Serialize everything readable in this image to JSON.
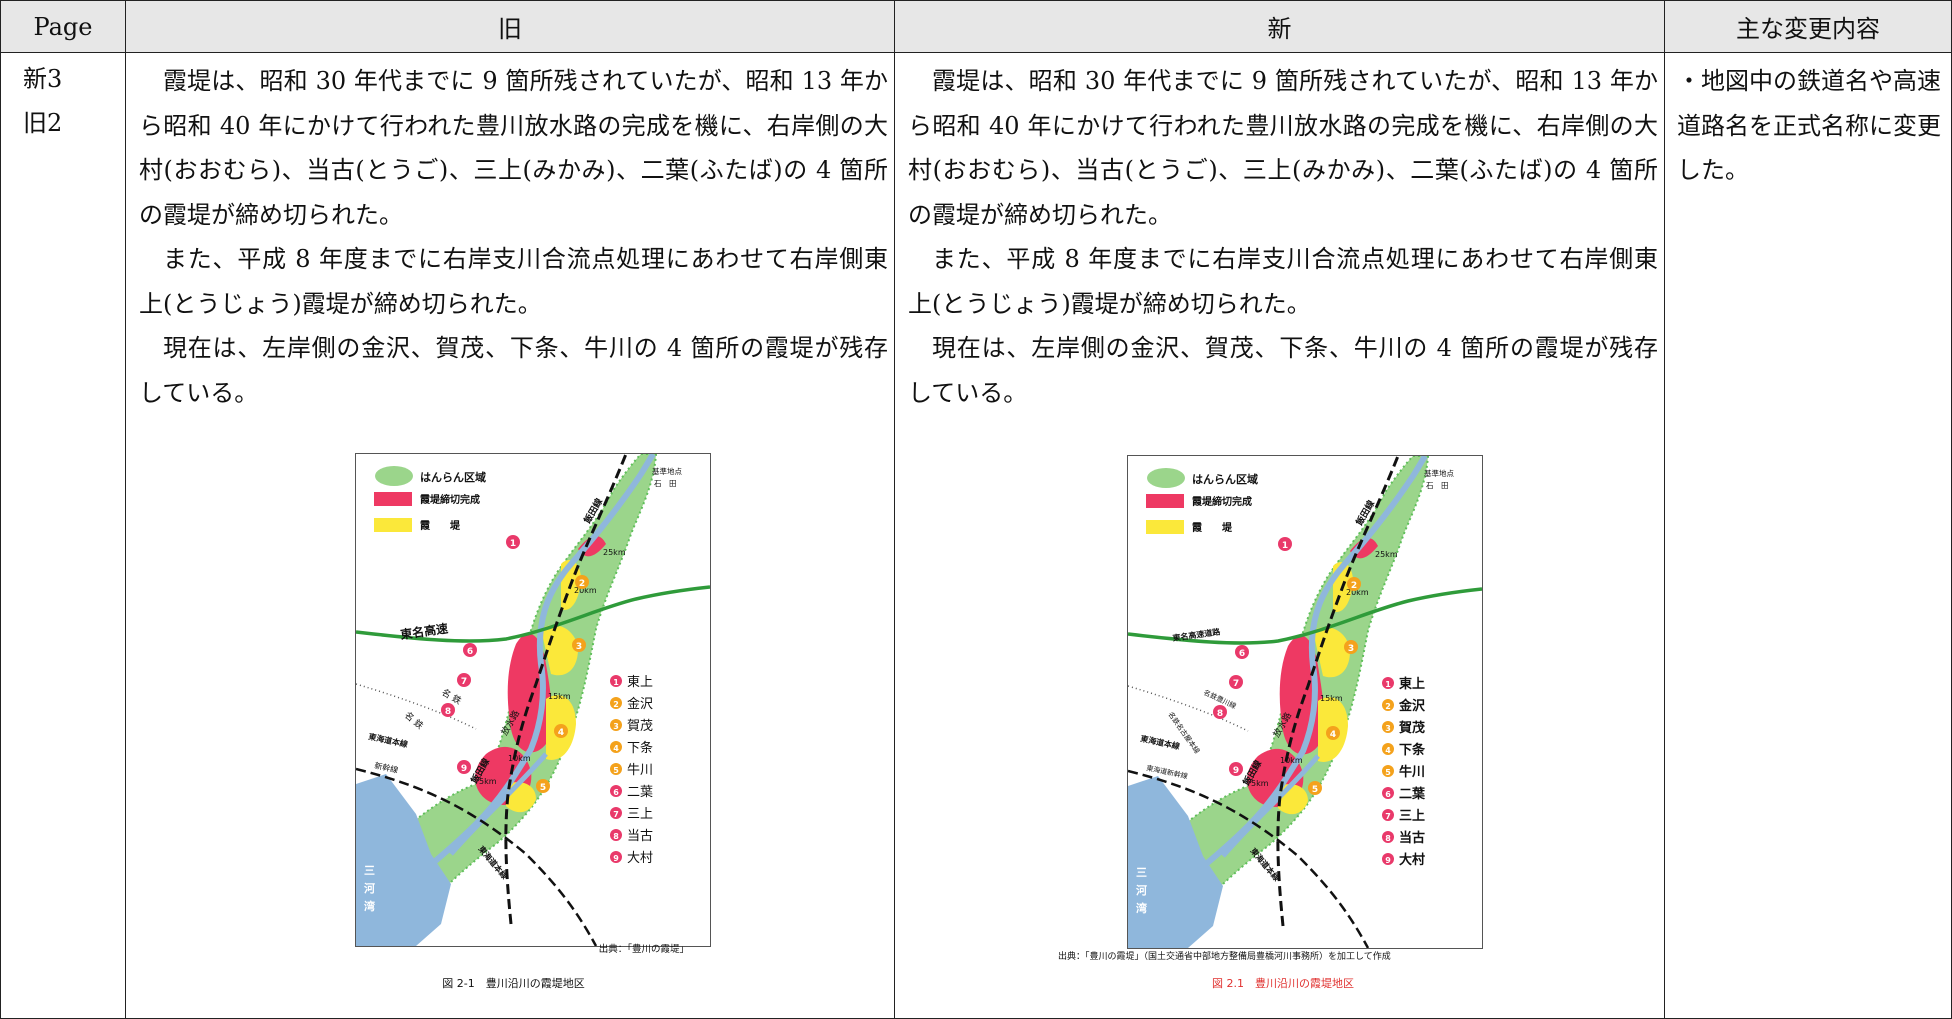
{
  "headers": {
    "page": "Page",
    "old": "旧",
    "new": "新",
    "changes": "主な変更内容"
  },
  "page_refs": [
    "新3",
    "旧2"
  ],
  "body_paragraphs": [
    "霞堤は、昭和 30 年代までに 9 箇所残されていたが、昭和 13 年から昭和 40 年にかけて行われた豊川放水路の完成を機に、右岸側の大村(おおむら)、当古(とうご)、三上(みかみ)、二葉(ふたば)の 4 箇所の霞堤が締め切られた。",
    "また、平成 8 年度までに右岸支川合流点処理にあわせて右岸側東上(とうじょう)霞堤が締め切られた。",
    "現在は、左岸側の金沢、賀茂、下条、牛川の 4 箇所の霞堤が残存している。"
  ],
  "change_note": "・地図中の鉄道名や高速道路名を正式名称に変更した。",
  "map_common": {
    "legend_flood": "はんらん区域",
    "legend_closed": "霞堤締切完成",
    "legend_open": "霞　　堤",
    "base_point_1": "基準地点",
    "base_point_2": "石　田",
    "km_25": "25km",
    "km_20": "20km",
    "km_15": "15km",
    "km_10": "10km",
    "km_5": "5km",
    "floodway": "放水路",
    "bay_1": "三",
    "bay_2": "河",
    "bay_3": "湾",
    "numbers": [
      "1",
      "2",
      "3",
      "4",
      "5",
      "6",
      "7",
      "8",
      "9"
    ],
    "site_names": [
      "東上",
      "金沢",
      "賀茂",
      "下条",
      "牛川",
      "二葉",
      "三上",
      "当古",
      "大村"
    ]
  },
  "old_map": {
    "expressway": "東名高速",
    "iida_line_top": "飯田線",
    "iida_line_mid": "飯田線",
    "meitetsu_1": "名 鉄",
    "meitetsu_2": "名 鉄",
    "tokaido_line": "東海道本線",
    "shinkansen": "新幹線",
    "tokaido_line_2": "東海道本線",
    "source": "出典：「豊川の霞堤」",
    "caption": "図 2-1　豊川沿川の霞堤地区"
  },
  "new_map": {
    "expressway": "東名高速道路",
    "iida_line_top": "飯田線",
    "iida_line_mid": "飯田線",
    "meitetsu_1": "名鉄豊川線",
    "meitetsu_2": "名鉄名古屋本線",
    "tokaido_line": "東海道本線",
    "shinkansen": "東海道新幹線",
    "tokaido_line_2": "東海道本線",
    "source": "出典：「豊川の霞堤」（国土交通省中部地方整備局豊橋河川事務所）を加工して作成",
    "caption": "図 2.1　豊川沿川の霞堤地区"
  },
  "colors": {
    "flood_area": "#9bd58b",
    "closed_levee": "#ee3963",
    "open_levee": "#fbe83a",
    "river": "#8fb7dc",
    "expressway": "#2f9b3a",
    "number_pink": "#e9396a",
    "number_orange": "#f4a21c"
  }
}
